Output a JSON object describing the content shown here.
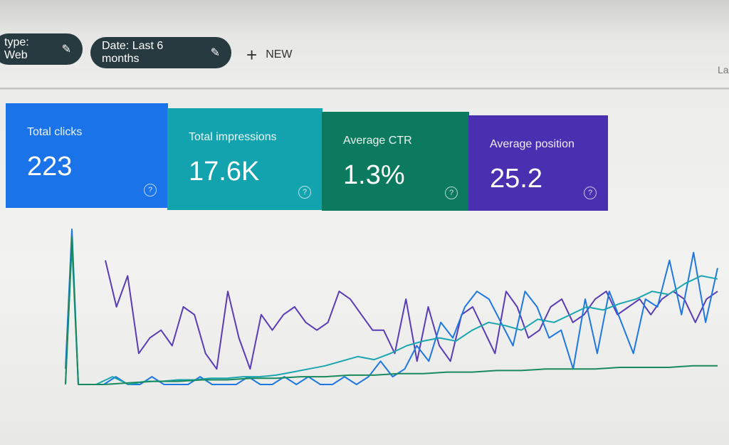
{
  "filters": [
    {
      "label": "type: Web",
      "icon": "pencil-icon"
    },
    {
      "label": "Date: Last 6 months",
      "icon": "pencil-icon"
    }
  ],
  "new_button": {
    "label": "NEW",
    "icon": "plus-icon"
  },
  "corner_text": "La",
  "metrics": [
    {
      "label": "Total clicks",
      "value": "223",
      "color": "#1a73e8"
    },
    {
      "label": "Total impressions",
      "value": "17.6K",
      "color": "#12a3ae"
    },
    {
      "label": "Average CTR",
      "value": "1.3%",
      "color": "#0b7a5e"
    },
    {
      "label": "Average position",
      "value": "25.2",
      "color": "#4a2fb0"
    }
  ],
  "chart_data": {
    "type": "line",
    "grid": false,
    "series": [
      {
        "color": "#5a3cb5",
        "values": [
          80,
          50,
          70,
          20,
          30,
          35,
          25,
          50,
          45,
          20,
          10,
          60,
          30,
          10,
          45,
          35,
          45,
          50,
          40,
          35,
          40,
          60,
          55,
          45,
          35,
          35,
          20,
          55,
          15,
          50,
          25,
          15,
          45,
          50,
          35,
          20,
          60,
          50,
          30,
          35,
          50,
          55,
          40,
          45,
          55,
          60,
          45,
          50,
          55,
          45,
          55,
          60,
          55,
          40,
          55,
          60
        ]
      },
      {
        "color": "#1f78e0",
        "values": [
          10,
          100,
          0,
          0,
          0,
          5,
          0,
          0,
          5,
          0,
          0,
          0,
          5,
          0,
          0,
          0,
          5,
          0,
          0,
          5,
          0,
          5,
          0,
          0,
          5,
          0,
          5,
          15,
          5,
          10,
          25,
          15,
          40,
          30,
          50,
          60,
          55,
          40,
          25,
          60,
          50,
          30,
          35,
          10,
          55,
          20,
          60,
          40,
          20,
          55,
          50,
          80,
          45,
          85,
          40,
          75
        ]
      },
      {
        "color": "#1aa5b0",
        "values": [
          0,
          90,
          0,
          0,
          5,
          0,
          2,
          2,
          3,
          3,
          4,
          4,
          5,
          5,
          6,
          8,
          10,
          12,
          15,
          18,
          16,
          20,
          25,
          28,
          30,
          28,
          35,
          40,
          38,
          35,
          42,
          40,
          45,
          50,
          48,
          52,
          55,
          60,
          58,
          65,
          70,
          68
        ]
      },
      {
        "color": "#188a5e",
        "values": [
          0,
          95,
          0,
          0,
          1,
          2,
          2,
          3,
          3,
          4,
          4,
          5,
          5,
          6,
          6,
          7,
          7,
          8,
          8,
          9,
          9,
          10,
          10,
          10,
          11,
          11,
          11,
          12,
          12
        ]
      }
    ]
  }
}
